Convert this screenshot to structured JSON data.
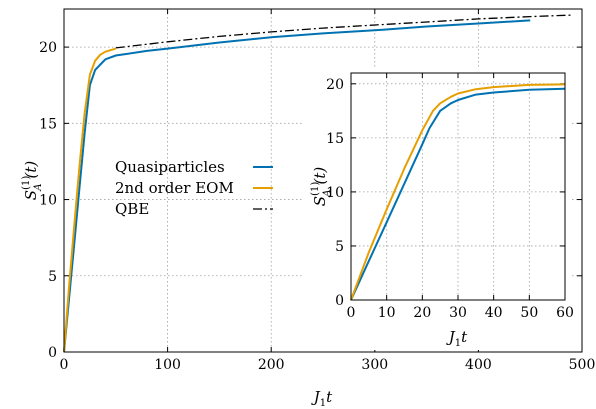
{
  "chart_data": [
    {
      "type": "line",
      "title": "",
      "xlabel": "J₁t",
      "ylabel": "S_A^(1)(t)",
      "xlim": [
        0,
        500
      ],
      "ylim": [
        0,
        22.5
      ],
      "xticks": [
        0,
        100,
        200,
        300,
        400,
        500
      ],
      "yticks": [
        0,
        5,
        10,
        15,
        20
      ],
      "grid": true,
      "legend_position": "center-left",
      "series": [
        {
          "name": "Quasiparticles",
          "color": "#0072b2",
          "style": "solid",
          "x": [
            0,
            5,
            10,
            15,
            20,
            25,
            30,
            40,
            50,
            60,
            80,
            100,
            150,
            200,
            250,
            300,
            350,
            400,
            450
          ],
          "y": [
            0,
            3.6,
            7.2,
            10.8,
            14.4,
            17.5,
            18.5,
            19.2,
            19.45,
            19.55,
            19.75,
            19.9,
            20.3,
            20.65,
            20.9,
            21.1,
            21.35,
            21.55,
            21.75
          ]
        },
        {
          "name": "2nd order EOM",
          "color": "#e69f00",
          "style": "solid",
          "x": [
            0,
            5,
            10,
            15,
            20,
            25,
            30,
            35,
            40,
            50
          ],
          "y": [
            0,
            4.4,
            8.4,
            12.2,
            15.7,
            18.2,
            19.1,
            19.5,
            19.7,
            19.9
          ]
        },
        {
          "name": "QBE",
          "color": "#000000",
          "style": "dash-dot",
          "x": [
            50,
            100,
            150,
            200,
            250,
            300,
            350,
            400,
            450,
            490
          ],
          "y": [
            19.95,
            20.35,
            20.7,
            21.0,
            21.25,
            21.45,
            21.65,
            21.85,
            22.0,
            22.1
          ]
        }
      ]
    },
    {
      "type": "line",
      "title": "",
      "xlabel": "J₁t",
      "ylabel": "S_A^(1)(t)",
      "xlim": [
        0,
        60
      ],
      "ylim": [
        0,
        21
      ],
      "xticks": [
        0,
        10,
        20,
        30,
        40,
        50,
        60
      ],
      "yticks": [
        0,
        5,
        10,
        15,
        20
      ],
      "grid": true,
      "series": [
        {
          "name": "Quasiparticles",
          "color": "#0072b2",
          "style": "solid",
          "x": [
            0,
            5,
            10,
            15,
            20,
            22,
            25,
            28,
            30,
            35,
            40,
            50,
            60
          ],
          "y": [
            0,
            3.6,
            7.2,
            10.8,
            14.4,
            15.9,
            17.5,
            18.2,
            18.5,
            19.0,
            19.2,
            19.45,
            19.55
          ]
        },
        {
          "name": "2nd order EOM",
          "color": "#e69f00",
          "style": "solid",
          "x": [
            0,
            5,
            10,
            15,
            20,
            23,
            25,
            28,
            30,
            35,
            40,
            50,
            60
          ],
          "y": [
            0,
            4.4,
            8.4,
            12.2,
            15.7,
            17.5,
            18.2,
            18.8,
            19.1,
            19.5,
            19.7,
            19.9,
            19.95
          ]
        }
      ]
    }
  ]
}
